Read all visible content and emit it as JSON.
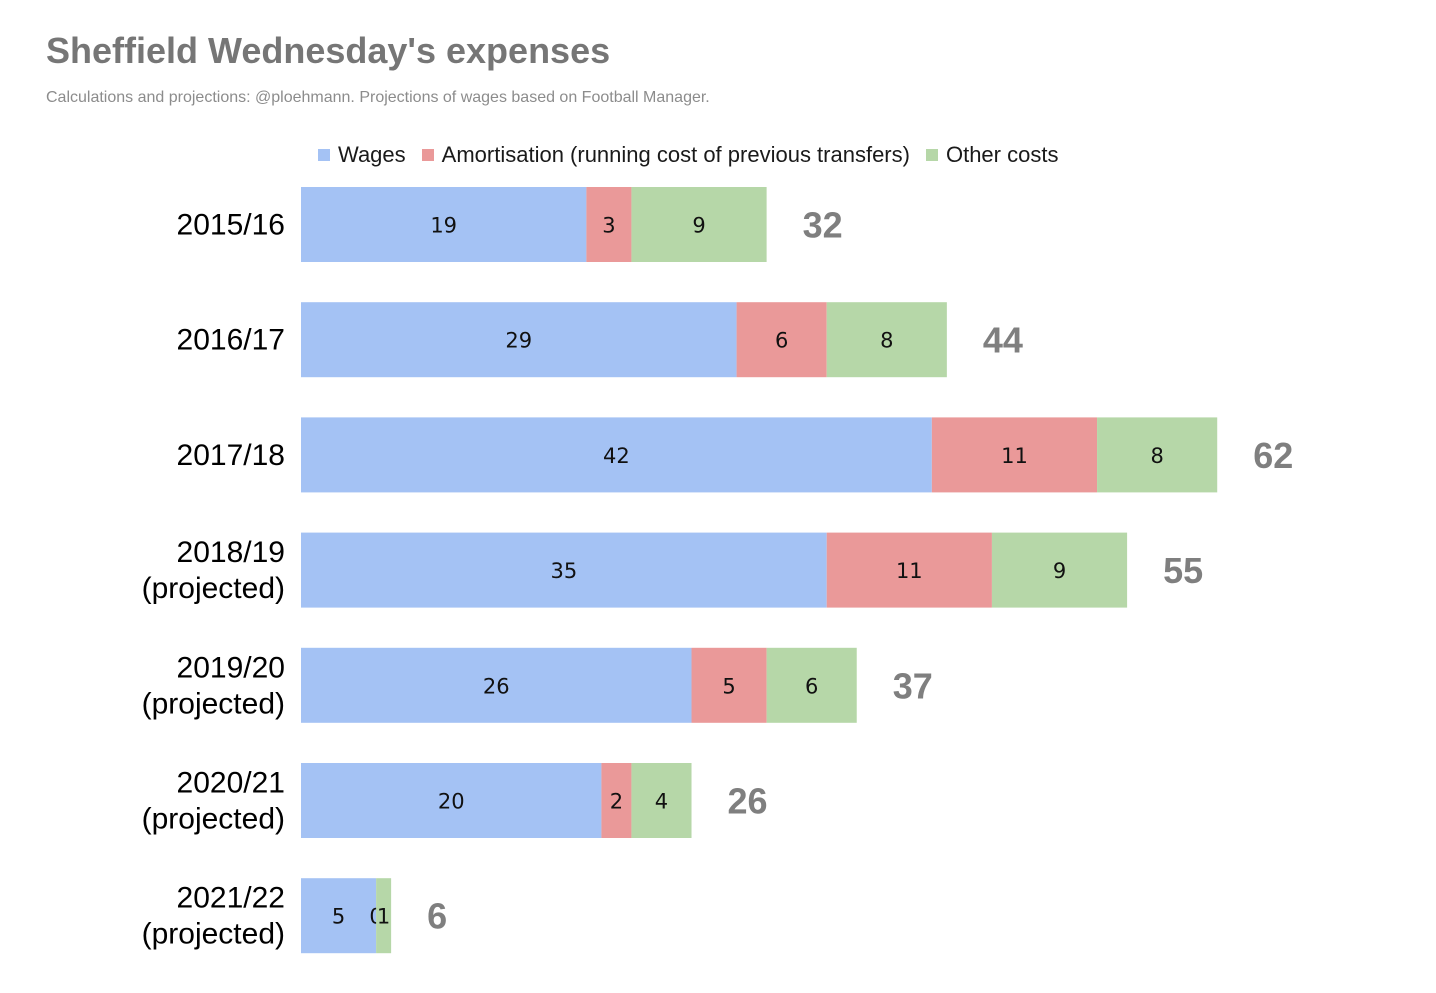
{
  "chart_data": {
    "type": "bar",
    "orientation": "horizontal",
    "stacked": true,
    "title": "Sheffield Wednesday's expenses",
    "subtitle": "Calculations and projections: @ploehmann. Projections of wages based on Football Manager.",
    "categories": [
      [
        "2015/16"
      ],
      [
        "2016/17"
      ],
      [
        "2017/18"
      ],
      [
        "2018/19",
        "(projected)"
      ],
      [
        "2019/20",
        "(projected)"
      ],
      [
        "2020/21",
        "(projected)"
      ],
      [
        "2021/22",
        "(projected)"
      ]
    ],
    "series": [
      {
        "name": "Wages",
        "color": "#a4c2f4",
        "values": [
          19,
          29,
          42,
          35,
          26,
          20,
          5
        ]
      },
      {
        "name": "Amortisation (running cost of previous transfers)",
        "color": "#ea9999",
        "values": [
          3,
          6,
          11,
          11,
          5,
          2,
          0
        ]
      },
      {
        "name": "Other costs",
        "color": "#b6d7a8",
        "values": [
          9,
          8,
          8,
          9,
          6,
          4,
          1
        ]
      }
    ],
    "totals": [
      32,
      44,
      62,
      55,
      37,
      26,
      6
    ],
    "legend_position": "top",
    "grid": false,
    "xlim": [
      0,
      62
    ]
  }
}
